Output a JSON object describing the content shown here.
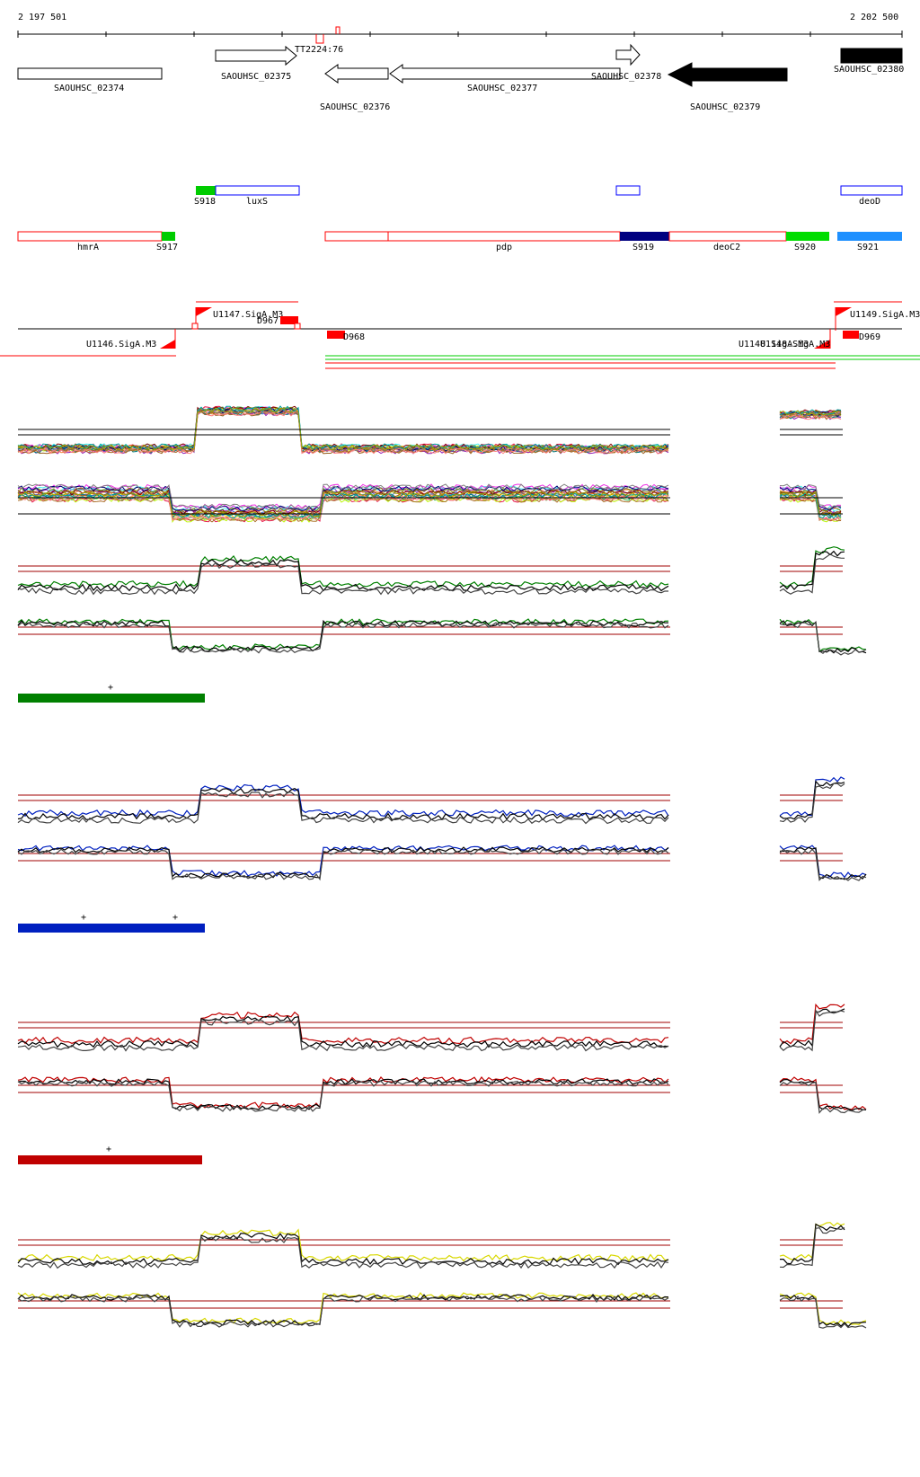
{
  "ruler": {
    "start_label": "2 197 501",
    "end_label": "2 202 500"
  },
  "features": {
    "terminator": "TT2224:76",
    "genes": [
      {
        "id": "SAOUHSC_02374",
        "fill": "none",
        "shape": "box"
      },
      {
        "id": "SAOUHSC_02375",
        "fill": "none",
        "shape": "arrow-right"
      },
      {
        "id": "SAOUHSC_02376",
        "fill": "none",
        "shape": "arrow-left"
      },
      {
        "id": "SAOUHSC_02377",
        "fill": "none",
        "shape": "arrow-left"
      },
      {
        "id": "SAOUHSC_02378",
        "fill": "none",
        "shape": "arrow-right"
      },
      {
        "id": "SAOUHSC_02379",
        "fill": "black",
        "shape": "arrow-left"
      },
      {
        "id": "SAOUHSC_02380",
        "fill": "black",
        "shape": "box"
      }
    ],
    "annotations_blue": [
      "luxS",
      "deoD"
    ],
    "annotations_red": [
      "hmrA",
      "pdp",
      "deoC2"
    ],
    "segments": [
      "S917",
      "S918",
      "S919",
      "S920",
      "S921"
    ],
    "segment_colors": {
      "S917": "#00cc00",
      "S918": "#00cc00",
      "S919": "#000080",
      "S920": "#00dd00",
      "S921": "#1e90ff"
    },
    "promoters": [
      "U1146.SigA.M3",
      "U1147.SigA.M3",
      "U1148.SigA.M3",
      "U1149.SigA.M3"
    ],
    "promoter_overlap_label": "U1148.SigA.M3",
    "sites": [
      "D967",
      "D968",
      "D969"
    ]
  },
  "conditions": [
    {
      "color": "#008000",
      "marks": [
        "+"
      ]
    },
    {
      "color": "#0020c0",
      "marks": [
        "+",
        "+"
      ]
    },
    {
      "color": "#c00000",
      "marks": [
        "+"
      ]
    },
    {
      "color": "#d8d800",
      "marks": []
    }
  ],
  "colors": {
    "threshold": "#a00000",
    "feature_red": "#ff0000",
    "annotation_blue": "#0000ff",
    "promoter_red": "#ff0000"
  }
}
